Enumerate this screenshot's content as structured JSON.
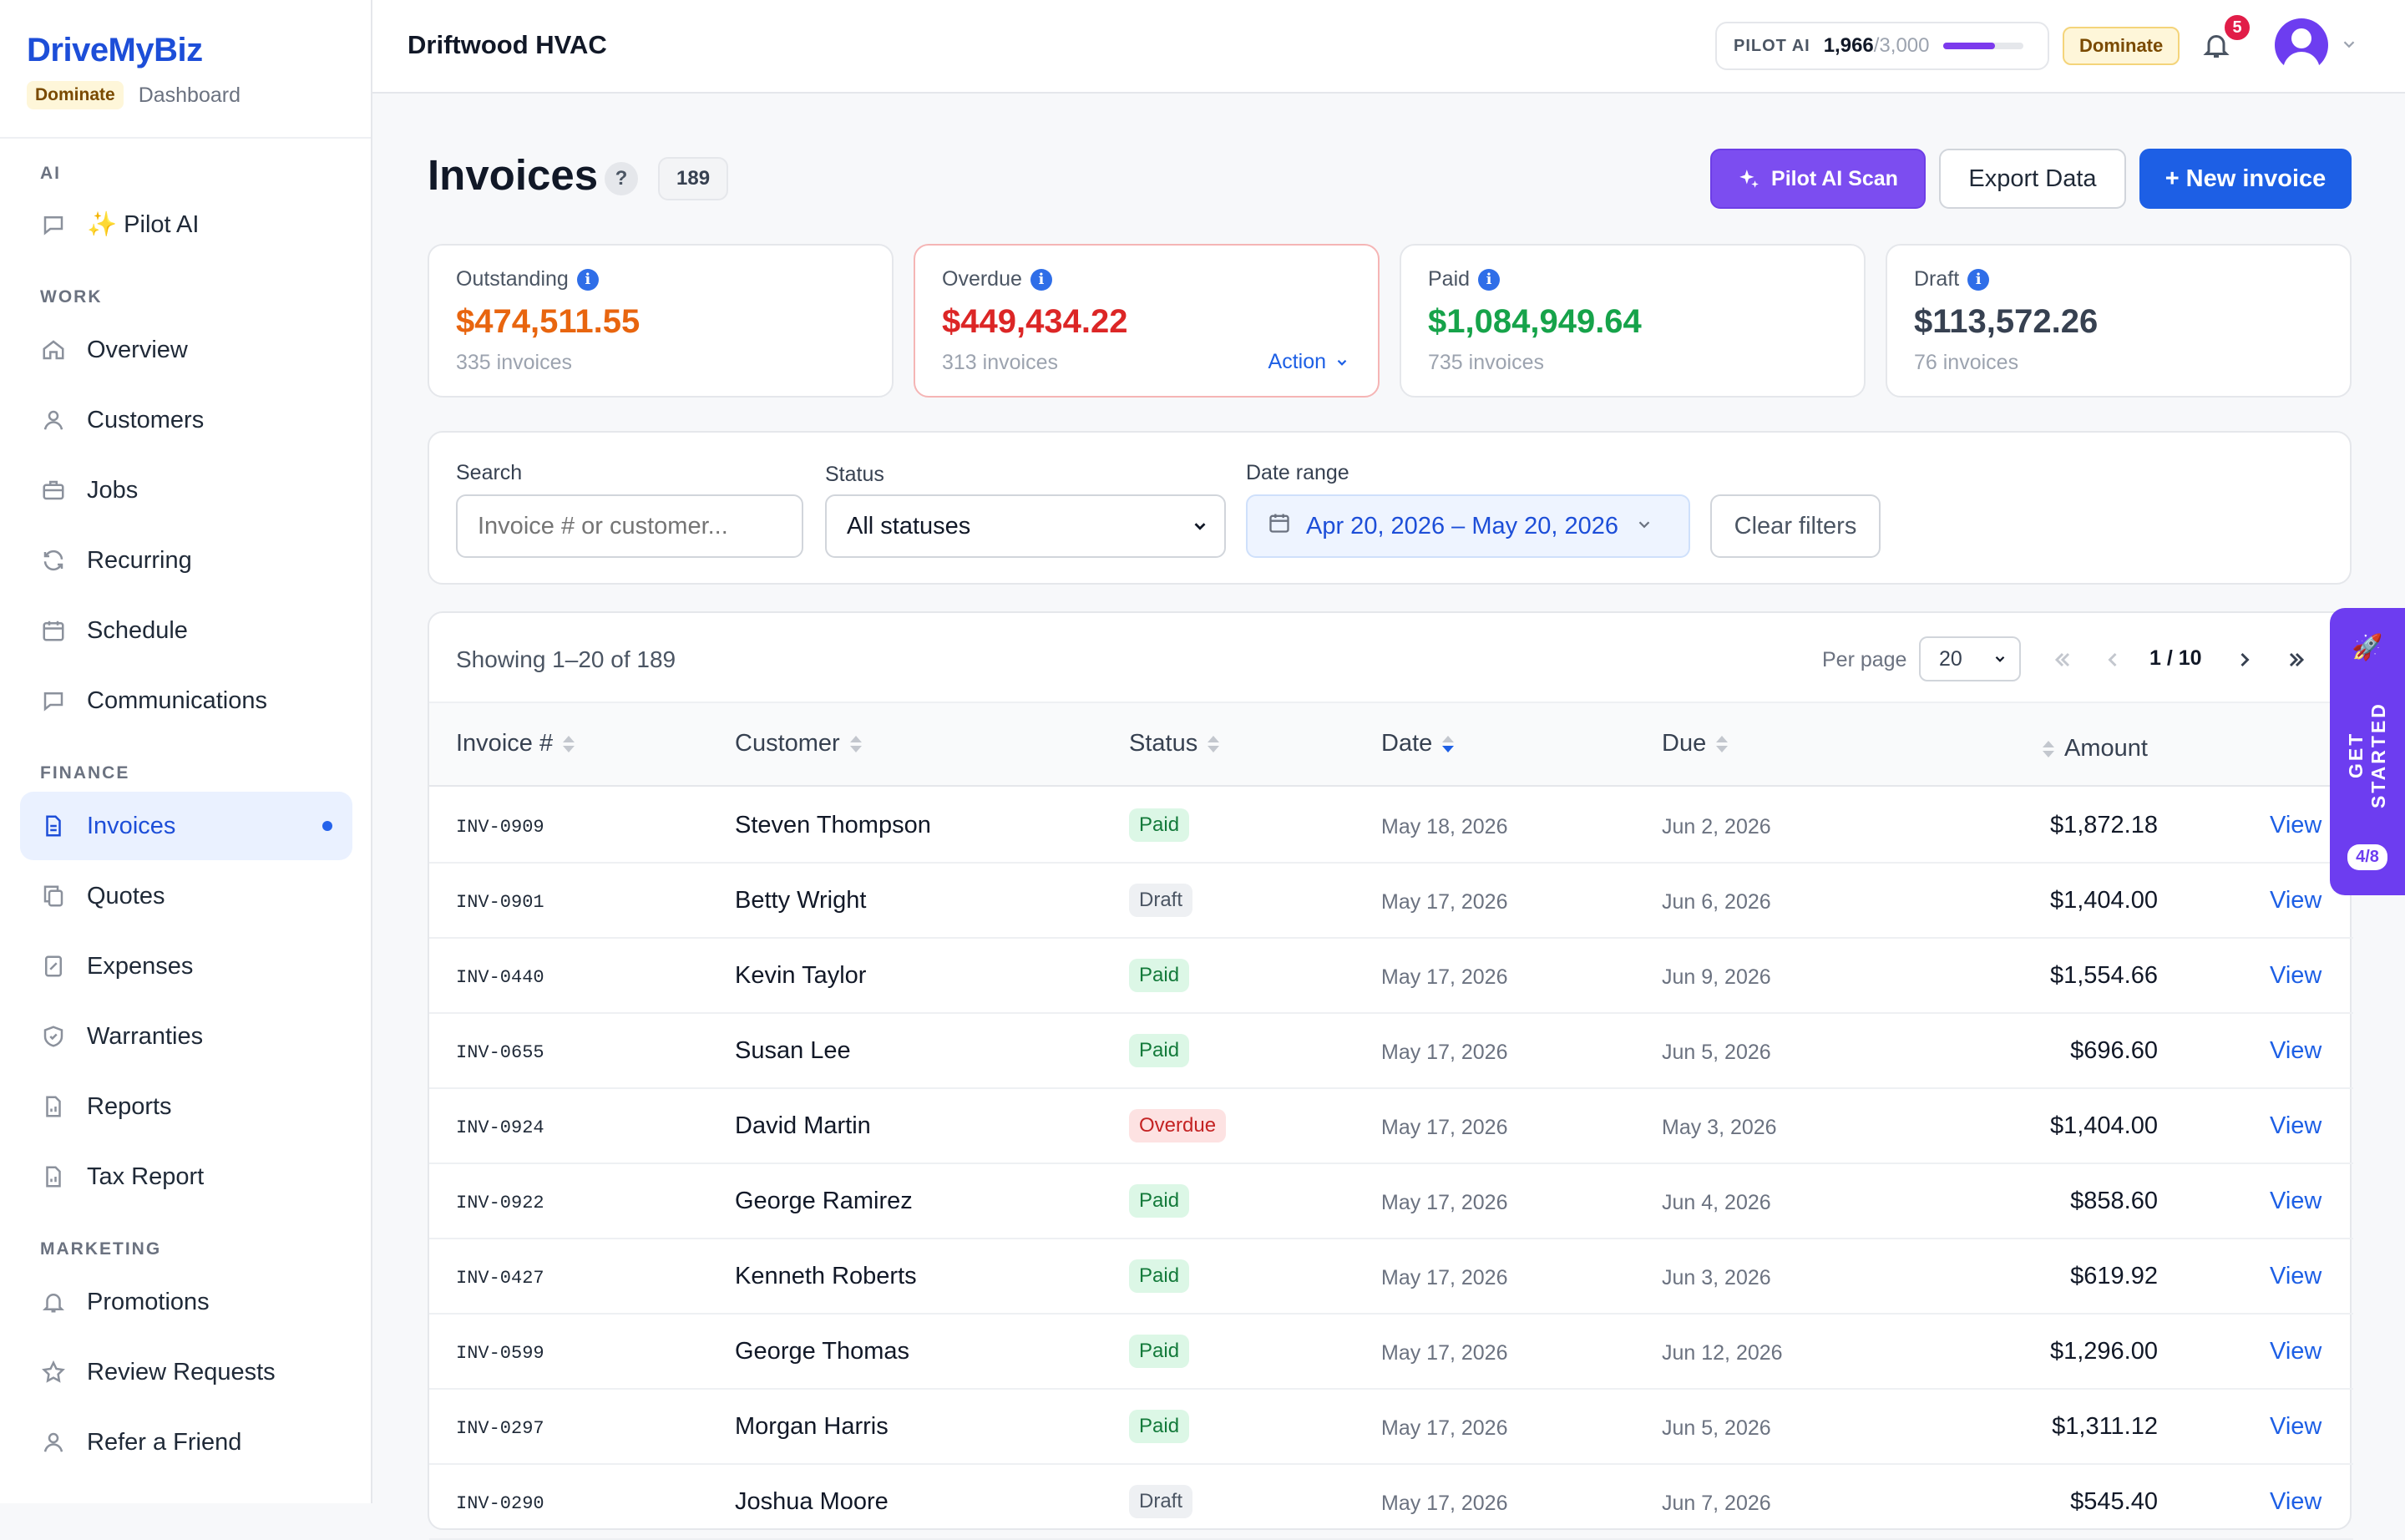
{
  "brand": {
    "name": "DriveMyBiz",
    "plan": "Dominate",
    "section": "Dashboard"
  },
  "sidebar": {
    "sections": [
      {
        "label": "AI"
      },
      {
        "label": "WORK"
      },
      {
        "label": "FINANCE"
      },
      {
        "label": "MARKETING"
      }
    ],
    "items": [
      {
        "label": "✨ Pilot AI",
        "icon": "chat-icon"
      },
      {
        "label": "Overview",
        "icon": "home-icon"
      },
      {
        "label": "Customers",
        "icon": "users-icon"
      },
      {
        "label": "Jobs",
        "icon": "briefcase-icon"
      },
      {
        "label": "Recurring",
        "icon": "refresh-icon"
      },
      {
        "label": "Schedule",
        "icon": "calendar-icon"
      },
      {
        "label": "Communications",
        "icon": "message-icon"
      },
      {
        "label": "Invoices",
        "icon": "document-icon",
        "active": true
      },
      {
        "label": "Quotes",
        "icon": "copy-icon"
      },
      {
        "label": "Expenses",
        "icon": "receipt-icon"
      },
      {
        "label": "Warranties",
        "icon": "shield-icon"
      },
      {
        "label": "Reports",
        "icon": "report-icon"
      },
      {
        "label": "Tax Report",
        "icon": "report-icon"
      },
      {
        "label": "Promotions",
        "icon": "bell-icon"
      },
      {
        "label": "Review Requests",
        "icon": "star-icon"
      },
      {
        "label": "Refer a Friend",
        "icon": "users-icon"
      }
    ]
  },
  "topbar": {
    "company": "Driftwood HVAC",
    "ai_label": "PILOT AI",
    "ai_used": "1,966",
    "ai_max": "/3,000",
    "ai_progress": 0.655,
    "plan_badge": "Dominate",
    "notifications": "5"
  },
  "page": {
    "title": "Invoices",
    "help": "?",
    "count": "189",
    "buttons": {
      "ai_scan": "Pilot AI Scan",
      "export": "Export Data",
      "new": "+ New invoice"
    }
  },
  "stats": [
    {
      "label": "Outstanding",
      "value": "$474,511.55",
      "sub": "335 invoices",
      "color": "#e8650f"
    },
    {
      "label": "Overdue",
      "value": "$449,434.22",
      "sub": "313 invoices",
      "color": "#dc2626",
      "action": "Action"
    },
    {
      "label": "Paid",
      "value": "$1,084,949.64",
      "sub": "735 invoices",
      "color": "#16a34a"
    },
    {
      "label": "Draft",
      "value": "$113,572.26",
      "sub": "76 invoices",
      "color": "#374151"
    }
  ],
  "filters": {
    "search_label": "Search",
    "search_placeholder": "Invoice # or customer...",
    "status_label": "Status",
    "status_value": "All statuses",
    "date_label": "Date range",
    "date_value": "Apr 20, 2026 – May 20, 2026",
    "clear": "Clear filters"
  },
  "table": {
    "showing": "Showing 1–20 of 189",
    "per_page_label": "Per page",
    "per_page": "20",
    "page_indicator": "1 / 10",
    "columns": {
      "invoice": "Invoice #",
      "customer": "Customer",
      "status": "Status",
      "date": "Date",
      "due": "Due",
      "amount": "Amount"
    },
    "view_label": "View",
    "rows": [
      {
        "inv": "INV-0909",
        "customer": "Steven Thompson",
        "status": "Paid",
        "date": "May 18, 2026",
        "due": "Jun 2, 2026",
        "amount": "$1,872.18"
      },
      {
        "inv": "INV-0901",
        "customer": "Betty Wright",
        "status": "Draft",
        "date": "May 17, 2026",
        "due": "Jun 6, 2026",
        "amount": "$1,404.00"
      },
      {
        "inv": "INV-0440",
        "customer": "Kevin Taylor",
        "status": "Paid",
        "date": "May 17, 2026",
        "due": "Jun 9, 2026",
        "amount": "$1,554.66"
      },
      {
        "inv": "INV-0655",
        "customer": "Susan Lee",
        "status": "Paid",
        "date": "May 17, 2026",
        "due": "Jun 5, 2026",
        "amount": "$696.60"
      },
      {
        "inv": "INV-0924",
        "customer": "David Martin",
        "status": "Overdue",
        "date": "May 17, 2026",
        "due": "May 3, 2026",
        "amount": "$1,404.00"
      },
      {
        "inv": "INV-0922",
        "customer": "George Ramirez",
        "status": "Paid",
        "date": "May 17, 2026",
        "due": "Jun 4, 2026",
        "amount": "$858.60"
      },
      {
        "inv": "INV-0427",
        "customer": "Kenneth Roberts",
        "status": "Paid",
        "date": "May 17, 2026",
        "due": "Jun 3, 2026",
        "amount": "$619.92"
      },
      {
        "inv": "INV-0599",
        "customer": "George Thomas",
        "status": "Paid",
        "date": "May 17, 2026",
        "due": "Jun 12, 2026",
        "amount": "$1,296.00"
      },
      {
        "inv": "INV-0297",
        "customer": "Morgan Harris",
        "status": "Paid",
        "date": "May 17, 2026",
        "due": "Jun 5, 2026",
        "amount": "$1,311.12"
      },
      {
        "inv": "INV-0290",
        "customer": "Joshua Moore",
        "status": "Draft",
        "date": "May 17, 2026",
        "due": "Jun 7, 2026",
        "amount": "$545.40"
      }
    ]
  },
  "get_started": {
    "label": "GET STARTED",
    "progress": "4/8"
  }
}
